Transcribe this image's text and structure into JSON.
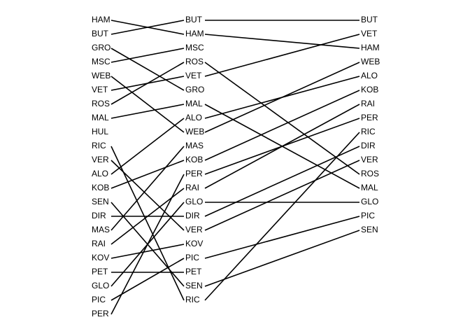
{
  "chart_data": {
    "type": "slopegraph",
    "title": "",
    "stages": [
      [
        "HAM",
        "BUT",
        "GRO",
        "MSC",
        "WEB",
        "VET",
        "ROS",
        "MAL",
        "HUL",
        "RIC",
        "VER",
        "ALO",
        "KOB",
        "SEN",
        "DIR",
        "MAS",
        "RAI",
        "KOV",
        "PET",
        "GLO",
        "PIC",
        "PER"
      ],
      [
        "BUT",
        "HAM",
        "MSC",
        "ROS",
        "VET",
        "GRO",
        "MAL",
        "ALO",
        "WEB",
        "MAS",
        "KOB",
        "PER",
        "RAI",
        "GLO",
        "DIR",
        "VER",
        "KOV",
        "PIC",
        "PET",
        "SEN",
        "RIC"
      ],
      [
        "BUT",
        "VET",
        "HAM",
        "WEB",
        "ALO",
        "KOB",
        "RAI",
        "PER",
        "RIC",
        "DIR",
        "VER",
        "ROS",
        "MAL",
        "GLO",
        "PIC",
        "SEN"
      ]
    ],
    "colors": {
      "line": "#000000",
      "text": "#000000",
      "background": "#ffffff"
    }
  }
}
